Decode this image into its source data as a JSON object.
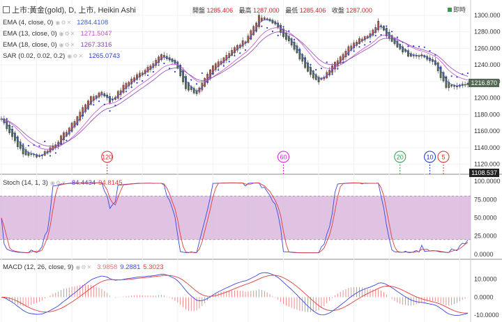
{
  "header": {
    "symbol": "上市:黃金(gold), D, 上市, Heikin Ashi",
    "open_label": "開盤",
    "open": "1285.406",
    "high_label": "最高",
    "high": "1287.000",
    "low_label": "最低",
    "low": "1285.406",
    "close_label": "收盤",
    "close": "1287.000",
    "live_label": "即時"
  },
  "indicators": [
    {
      "name": "EMA (4, close, 0)",
      "value": "1284.4108",
      "color": "#3b5bd6"
    },
    {
      "name": "EMA (13, close, 0)",
      "value": "1271.5047",
      "color": "#c24fcf"
    },
    {
      "name": "EMA (18, close, 0)",
      "value": "1267.3316",
      "color": "#8e44ad"
    },
    {
      "name": "SAR (0.02, 0.02, 0.2)",
      "value": "1265.0743",
      "color": "#2b3bd9"
    }
  ],
  "price_axis": {
    "ticks": [
      "1300.000",
      "1280.000",
      "1260.000",
      "1240.000",
      "1220.000",
      "1200.000",
      "1180.000",
      "1160.000",
      "1140.000",
      "1120.000"
    ],
    "last_price": "1216.870",
    "last_low": "1108.537"
  },
  "markers": [
    {
      "label": "120",
      "color": "#d32f2f",
      "index": 39
    },
    {
      "label": "60",
      "color": "#d81bd8",
      "index": 104
    },
    {
      "label": "20",
      "color": "#2e9e4c",
      "index": 147
    },
    {
      "label": "10",
      "color": "#1a35c9",
      "index": 158
    },
    {
      "label": "5",
      "color": "#d32f2f",
      "index": 163
    }
  ],
  "stoch": {
    "name": "Stoch (14, 1, 3)",
    "k": "84.4434",
    "d": "94.8145",
    "ticks": [
      "100.0000",
      "75.0000",
      "50.0000",
      "25.0000",
      "0.0000"
    ]
  },
  "macd": {
    "name": "MACD (12, 26, close, 9)",
    "hist": "3.9858",
    "macd": "9.2881",
    "signal": "5.3023",
    "ticks": [
      "10.0000",
      "0.0000",
      "-10.0000"
    ]
  },
  "colors": {
    "up": "#b5533f",
    "down": "#526a55",
    "k_line": "#3b45e0",
    "d_line": "#e03b3b",
    "hist": "#e57373",
    "band": "#d8b4dc"
  },
  "chart_data": [
    {
      "type": "candlestick",
      "title": "上市:黃金(gold), D, 上市, Heikin Ashi",
      "ylim": [
        1108,
        1310
      ],
      "anchors": [
        [
          0,
          1175
        ],
        [
          8,
          1132
        ],
        [
          14,
          1130
        ],
        [
          20,
          1145
        ],
        [
          26,
          1168
        ],
        [
          32,
          1198
        ],
        [
          37,
          1208
        ],
        [
          40,
          1195
        ],
        [
          46,
          1218
        ],
        [
          52,
          1232
        ],
        [
          59,
          1252
        ],
        [
          64,
          1242
        ],
        [
          68,
          1212
        ],
        [
          72,
          1206
        ],
        [
          78,
          1238
        ],
        [
          85,
          1258
        ],
        [
          90,
          1270
        ],
        [
          95,
          1298
        ],
        [
          100,
          1292
        ],
        [
          106,
          1268
        ],
        [
          112,
          1238
        ],
        [
          117,
          1218
        ],
        [
          122,
          1240
        ],
        [
          130,
          1268
        ],
        [
          136,
          1278
        ],
        [
          139,
          1292
        ],
        [
          143,
          1270
        ],
        [
          150,
          1252
        ],
        [
          155,
          1252
        ],
        [
          160,
          1240
        ],
        [
          164,
          1212
        ],
        [
          169,
          1214
        ],
        [
          172,
          1218
        ]
      ]
    },
    {
      "type": "line",
      "title": "Stoch (14, 1, 3)",
      "ylim": [
        -5,
        105
      ],
      "bands": [
        20,
        80
      ]
    },
    {
      "type": "bar",
      "title": "MACD (12, 26, close, 9)",
      "ylim": [
        -13,
        16
      ]
    }
  ]
}
